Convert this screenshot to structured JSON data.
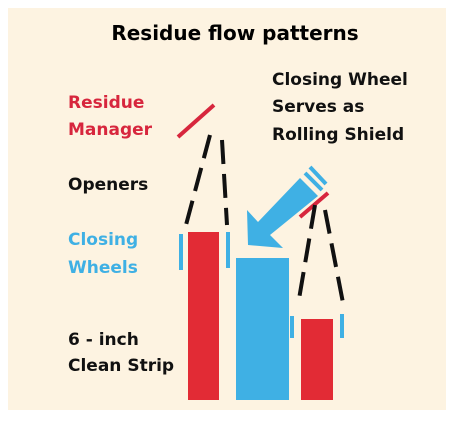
{
  "title": "Residue flow patterns",
  "labels": {
    "residue_manager": [
      "Residue",
      "Manager"
    ],
    "openers": "Openers",
    "closing_wheels": [
      "Closing",
      "Wheels"
    ],
    "clean_strip": [
      "6 - inch",
      "Clean Strip"
    ],
    "rolling_shield": [
      "Closing Wheel",
      "Serves as",
      "Rolling Shield"
    ]
  }
}
